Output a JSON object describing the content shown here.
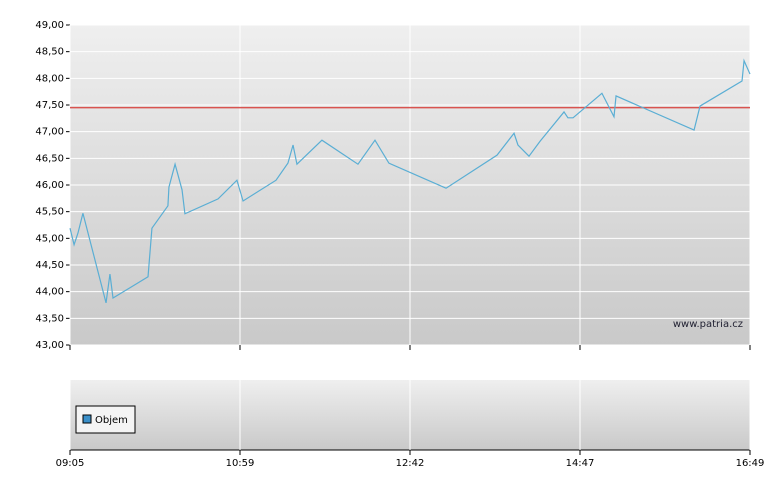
{
  "chart_data": {
    "type": "line",
    "x": [
      0,
      0.024,
      0.047,
      0.076,
      0.212,
      0.235,
      0.253,
      0.459,
      0.482,
      0.576,
      0.582,
      0.618,
      0.659,
      0.676,
      0.871,
      0.982,
      1.018,
      1.212,
      1.282,
      1.312,
      1.335,
      1.482,
      1.694,
      1.794,
      1.876,
      2.212,
      2.512,
      2.612,
      2.635,
      2.7,
      2.765,
      2.906,
      2.929,
      2.959,
      3.129,
      3.2,
      3.212,
      3.671,
      3.706,
      3.953,
      3.965,
      4
    ],
    "series": [
      {
        "color": "#5aaed4",
        "values": [
          45.19,
          44.88,
          45.1,
          45.47,
          43.79,
          44.33,
          43.88,
          44.28,
          45.19,
          45.61,
          45.96,
          46.39,
          45.91,
          45.46,
          45.74,
          46.09,
          45.7,
          46.09,
          46.41,
          46.75,
          46.39,
          46.84,
          46.39,
          46.84,
          46.41,
          45.94,
          46.56,
          46.97,
          46.75,
          46.54,
          46.82,
          47.37,
          47.26,
          47.26,
          47.72,
          47.28,
          47.67,
          47.03,
          47.48,
          47.95,
          48.33,
          48.08
        ]
      }
    ],
    "reference_line": {
      "value": 47.45,
      "color": "#d9534f"
    },
    "xlim": [
      0,
      4
    ],
    "xticks": [
      {
        "value": 0,
        "label": "09:05"
      },
      {
        "value": 1,
        "label": "10:59"
      },
      {
        "value": 2,
        "label": "12:42"
      },
      {
        "value": 3,
        "label": "14:47"
      },
      {
        "value": 4,
        "label": "16:49"
      }
    ],
    "ylim": [
      43,
      49
    ],
    "yticks": [
      {
        "value": 43,
        "label": "43,00"
      },
      {
        "value": 43.5,
        "label": "43,50"
      },
      {
        "value": 44,
        "label": "44,00"
      },
      {
        "value": 44.5,
        "label": "44,50"
      },
      {
        "value": 45,
        "label": "45,00"
      },
      {
        "value": 45.5,
        "label": "45,50"
      },
      {
        "value": 46,
        "label": "46,00"
      },
      {
        "value": 46.5,
        "label": "46,50"
      },
      {
        "value": 47,
        "label": "47,00"
      },
      {
        "value": 47.5,
        "label": "47,50"
      },
      {
        "value": 48,
        "label": "48,00"
      },
      {
        "value": 48.5,
        "label": "48,50"
      },
      {
        "value": 49,
        "label": "49,00"
      }
    ],
    "grid": true,
    "watermark": "www.patria.cz",
    "volume_panel": {
      "legend": "Objem",
      "color": "#3a8fc9"
    }
  }
}
